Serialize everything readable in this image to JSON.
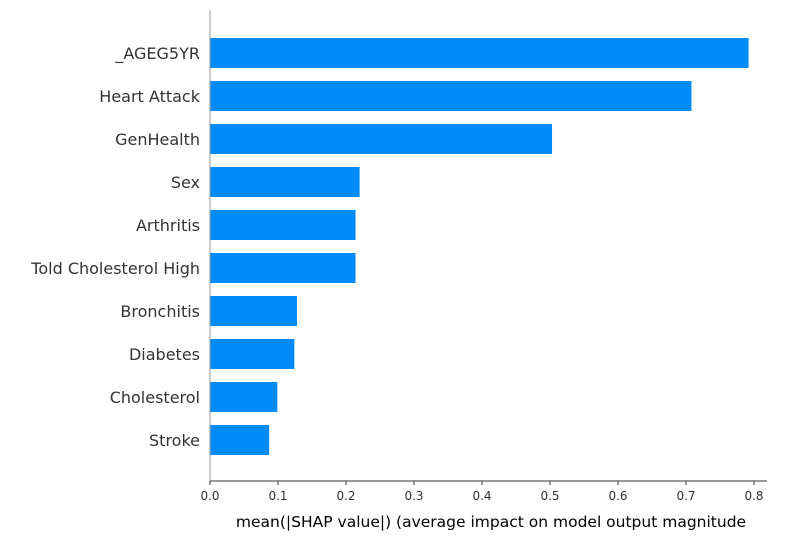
{
  "chart_data": {
    "type": "bar",
    "orientation": "horizontal",
    "categories": [
      "_AGEG5YR",
      "Heart Attack",
      "GenHealth",
      "Sex",
      "Arthritis",
      "Told Cholesterol High",
      "Bronchitis",
      "Diabetes",
      "Cholesterol",
      "Stroke"
    ],
    "values": [
      0.792,
      0.708,
      0.503,
      0.22,
      0.214,
      0.214,
      0.128,
      0.124,
      0.099,
      0.087
    ],
    "xlabel": "mean(|SHAP value|) (average impact on model output magnitude",
    "ylabel": "",
    "xlim": [
      0,
      0.83
    ],
    "xticks": [
      "0.0",
      "0.1",
      "0.2",
      "0.3",
      "0.4",
      "0.5",
      "0.6",
      "0.7",
      "0.8"
    ],
    "bar_color": "#008bfb",
    "grid": false
  }
}
